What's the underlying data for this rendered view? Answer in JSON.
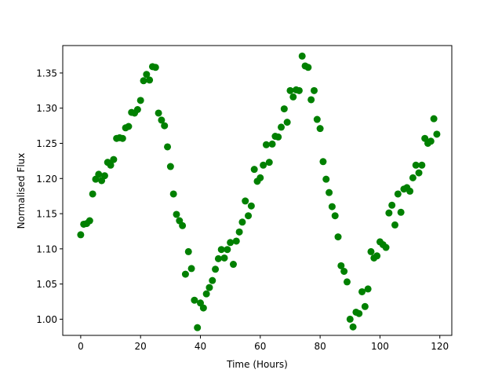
{
  "chart_data": {
    "type": "scatter",
    "xlabel": "Time (Hours)",
    "ylabel": "Normalised Flux",
    "xlim": [
      -6,
      124
    ],
    "ylim": [
      0.977,
      1.389
    ],
    "xticks": [
      0,
      20,
      40,
      60,
      80,
      100,
      120
    ],
    "yticks": [
      1.0,
      1.05,
      1.1,
      1.15,
      1.2,
      1.25,
      1.3,
      1.35
    ],
    "grid": false,
    "marker_color": "#008000",
    "series": [
      {
        "x": [
          0,
          1,
          2,
          3,
          4,
          5,
          6,
          7,
          8,
          9,
          10,
          11,
          12,
          13,
          14,
          15,
          16,
          17,
          18,
          19,
          20,
          21,
          22,
          23,
          24,
          25,
          26,
          27,
          28,
          29,
          30,
          31,
          32,
          33,
          34,
          35,
          36,
          37,
          38,
          39,
          40,
          41,
          42,
          43,
          44,
          45,
          46,
          47,
          48,
          49,
          50,
          51,
          52,
          53,
          54,
          55,
          56,
          57,
          58,
          59,
          60,
          61,
          62,
          63,
          64,
          65,
          66,
          67,
          68,
          69,
          70,
          71,
          72,
          73,
          74,
          75,
          76,
          77,
          78,
          79,
          80,
          81,
          82,
          83,
          84,
          85,
          86,
          87,
          88,
          89,
          90,
          91,
          92,
          93,
          94,
          95,
          96,
          97,
          98,
          99,
          100,
          101,
          102,
          103,
          104,
          105,
          106,
          107,
          108,
          109,
          110,
          111,
          112,
          113,
          114,
          115,
          116,
          117,
          118,
          119
        ],
        "y": [
          1.12,
          1.135,
          1.136,
          1.14,
          1.178,
          1.199,
          1.206,
          1.197,
          1.204,
          1.223,
          1.219,
          1.227,
          1.257,
          1.258,
          1.257,
          1.272,
          1.274,
          1.294,
          1.293,
          1.298,
          1.311,
          1.339,
          1.348,
          1.34,
          1.359,
          1.358,
          1.293,
          1.283,
          1.275,
          1.245,
          1.217,
          1.178,
          1.149,
          1.14,
          1.133,
          1.064,
          1.096,
          1.072,
          1.027,
          0.988,
          1.023,
          1.016,
          1.036,
          1.045,
          1.055,
          1.071,
          1.086,
          1.099,
          1.087,
          1.099,
          1.109,
          1.078,
          1.111,
          1.124,
          1.138,
          1.168,
          1.147,
          1.161,
          1.213,
          1.196,
          1.201,
          1.219,
          1.248,
          1.223,
          1.249,
          1.26,
          1.259,
          1.273,
          1.299,
          1.28,
          1.325,
          1.316,
          1.326,
          1.325,
          1.374,
          1.36,
          1.358,
          1.312,
          1.325,
          1.284,
          1.271,
          1.224,
          1.199,
          1.18,
          1.16,
          1.147,
          1.117,
          1.076,
          1.068,
          1.053,
          1.0,
          0.989,
          1.01,
          1.008,
          1.039,
          1.018,
          1.043,
          1.096,
          1.087,
          1.09,
          1.11,
          1.106,
          1.102,
          1.151,
          1.162,
          1.134,
          1.178,
          1.152,
          1.185,
          1.187,
          1.182,
          1.201,
          1.219,
          1.208,
          1.219,
          1.257,
          1.25,
          1.253,
          1.285,
          1.263
        ]
      }
    ]
  }
}
